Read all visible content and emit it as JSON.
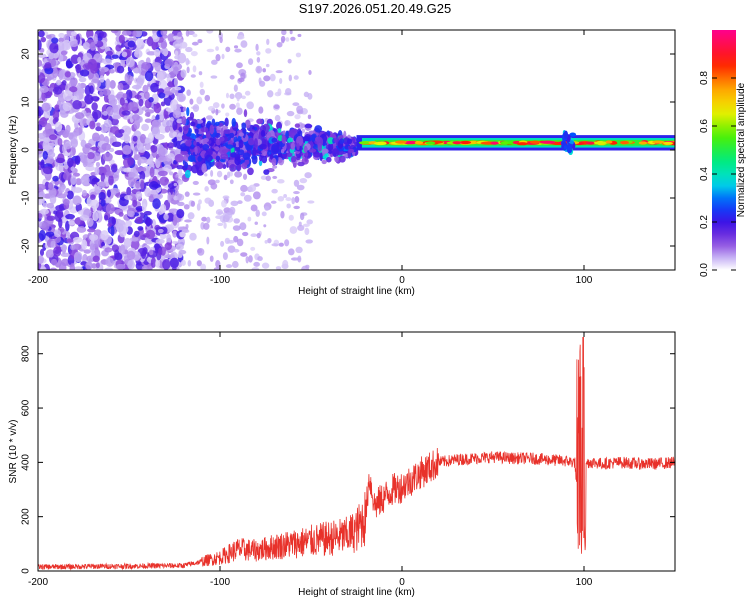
{
  "title": "S197.2026.051.20.49.G25",
  "chart_data": [
    {
      "type": "heatmap",
      "xlabel": "Height of straight line (km)",
      "ylabel": "Frequency (Hz)",
      "xlim": [
        -200,
        150
      ],
      "ylim": [
        -25,
        25
      ],
      "xticks": [
        -200,
        -100,
        0,
        100
      ],
      "yticks": [
        -20,
        -10,
        0,
        10,
        20
      ],
      "colorbar": {
        "label": "Normalized spectral amplitude",
        "range": [
          0,
          1
        ],
        "ticks": [
          "0.0",
          "0.2",
          "0.4",
          "0.6",
          "0.8"
        ]
      },
      "features": [
        {
          "region": "scattered noise",
          "x_range": [
            -200,
            -120
          ],
          "freq_range": [
            -25,
            25
          ],
          "amplitude": 0.1
        },
        {
          "region": "transition",
          "x_range": [
            -120,
            -25
          ],
          "freq_range": [
            -8,
            8
          ],
          "amplitude": 0.25
        },
        {
          "region": "carrier line",
          "x_range": [
            -25,
            150
          ],
          "freq_center": 1.5,
          "amplitude": 0.95
        }
      ]
    },
    {
      "type": "line",
      "xlabel": "Height of straight line (km)",
      "ylabel": "SNR (10 * v/v)",
      "xlim": [
        -200,
        150
      ],
      "ylim": [
        0,
        880
      ],
      "xticks": [
        -200,
        -100,
        0,
        100
      ],
      "yticks": [
        0,
        200,
        400,
        600,
        800
      ],
      "series": [
        {
          "name": "SNR",
          "color": "#e8312a",
          "x": [
            -200,
            -150,
            -120,
            -110,
            -100,
            -90,
            -80,
            -70,
            -60,
            -50,
            -40,
            -30,
            -25,
            -20,
            -18,
            -15,
            -10,
            -5,
            0,
            10,
            20,
            30,
            40,
            50,
            60,
            70,
            80,
            90,
            95,
            98,
            99,
            100,
            102,
            105,
            110,
            120,
            130,
            140,
            150
          ],
          "values": [
            15,
            18,
            20,
            35,
            50,
            80,
            75,
            90,
            100,
            110,
            120,
            130,
            150,
            200,
            350,
            240,
            270,
            300,
            310,
            360,
            400,
            410,
            415,
            420,
            415,
            415,
            410,
            405,
            400,
            120,
            860,
            390,
            400,
            400,
            395,
            400,
            395,
            395,
            400
          ]
        }
      ]
    }
  ],
  "labels": {
    "top_xlabel": "Height of straight line (km)",
    "top_ylabel": "Frequency (Hz)",
    "bottom_xlabel": "Height of straight line (km)",
    "bottom_ylabel": "SNR (10 * v/v)",
    "colorbar_label": "Normalized spectral amplitude"
  }
}
